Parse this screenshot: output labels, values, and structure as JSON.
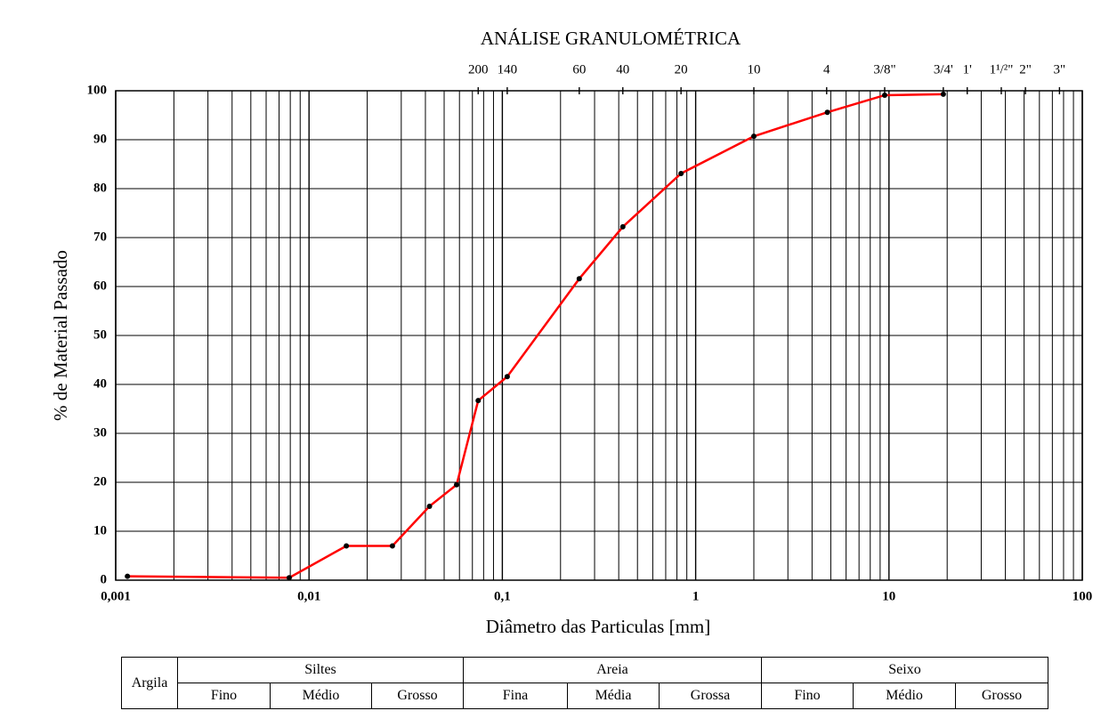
{
  "chart_data": {
    "type": "line",
    "title": "ANÁLISE GRANULOMÉTRICA",
    "xlabel": "Diâmetro das Particulas [mm]",
    "ylabel": "% de Material Passado",
    "x": [
      0.00115,
      0.0079,
      0.0156,
      0.027,
      0.042,
      0.058,
      0.075,
      0.106,
      0.25,
      0.42,
      0.84,
      2.0,
      4.8,
      9.5,
      19.1
    ],
    "values": [
      0.8,
      0.5,
      7,
      7,
      15.1,
      19.5,
      36.7,
      41.6,
      61.6,
      72.2,
      83.1,
      90.7,
      95.6,
      99.1,
      99.3
    ],
    "color": "#ff0000",
    "marker_color": "#000000",
    "xscale": "log",
    "xlim": [
      0.001,
      100
    ],
    "ylim": [
      0,
      100
    ],
    "xticks": [
      {
        "value": 0.001,
        "label": "0,001"
      },
      {
        "value": 0.01,
        "label": "0,01"
      },
      {
        "value": 0.1,
        "label": "0,1"
      },
      1,
      10,
      100
    ],
    "yticks": [
      0,
      10,
      20,
      30,
      40,
      50,
      60,
      70,
      80,
      90,
      100
    ],
    "xgrid": [
      0.002,
      0.003,
      0.004,
      0.005,
      0.006,
      0.007,
      0.008,
      0.009,
      0.02,
      0.03,
      0.04,
      0.05,
      0.06,
      0.07,
      0.08,
      0.09,
      0.2,
      0.3,
      0.4,
      0.5,
      0.6,
      0.7,
      0.8,
      0.9,
      2,
      3,
      4,
      5,
      6,
      7,
      8,
      9,
      20,
      30,
      40,
      50,
      60,
      70,
      80,
      90
    ],
    "top_ticks": [
      {
        "value": 0.075,
        "label": "200"
      },
      {
        "value": 0.106,
        "label": "140"
      },
      {
        "value": 0.25,
        "label": "60"
      },
      {
        "value": 0.42,
        "label": "40"
      },
      {
        "value": 0.84,
        "label": "20"
      },
      {
        "value": 2.0,
        "label": "10"
      },
      {
        "value": 4.76,
        "label": "4"
      },
      {
        "value": 9.5,
        "label": "3/8\""
      },
      {
        "value": 19.1,
        "label": "3/4'"
      },
      {
        "value": 25.4,
        "label": "1'"
      },
      {
        "value": 38.1,
        "label": "1¹/²\""
      },
      {
        "value": 50.8,
        "label": "2\""
      },
      {
        "value": 76.2,
        "label": "3\""
      }
    ],
    "grid": true
  },
  "table": {
    "first": "Argila",
    "groups": [
      {
        "name": "Siltes",
        "subs": [
          "Fino",
          "Médio",
          "Grosso"
        ]
      },
      {
        "name": "Areia",
        "subs": [
          "Fina",
          "Média",
          "Grossa"
        ]
      },
      {
        "name": "Seixo",
        "subs": [
          "Fino",
          "Médio",
          "Grosso"
        ]
      }
    ]
  }
}
